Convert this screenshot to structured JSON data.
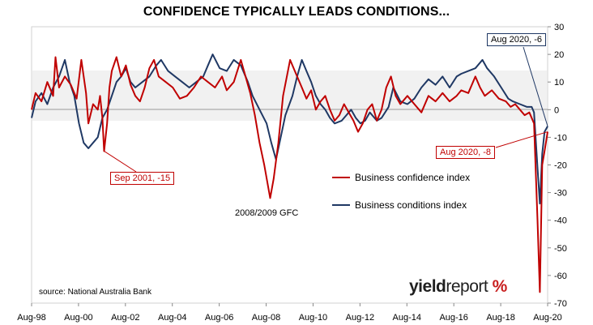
{
  "chart_data": {
    "type": "line",
    "title": "CONFIDENCE TYPICALLY LEADS CONDITIONS...",
    "x_tick_labels": [
      "Aug-98",
      "Aug-00",
      "Aug-02",
      "Aug-04",
      "Aug-06",
      "Aug-08",
      "Aug-10",
      "Aug-12",
      "Aug-14",
      "Aug-16",
      "Aug-18",
      "Aug-20"
    ],
    "xlim": [
      1998.58,
      2020.58
    ],
    "ylim": [
      -70,
      30
    ],
    "y_ticks": [
      30,
      20,
      10,
      0,
      -10,
      -20,
      -30,
      -40,
      -50,
      -60,
      -70
    ],
    "y_axis_side": "right",
    "legend_placement": "center-right",
    "grid": false,
    "series": [
      {
        "name": "Business confidence index",
        "color": "#c00000",
        "points": [
          [
            1998.58,
            0
          ],
          [
            1998.75,
            6
          ],
          [
            1999.0,
            3
          ],
          [
            1999.25,
            10
          ],
          [
            1999.5,
            5
          ],
          [
            1999.6,
            19
          ],
          [
            1999.75,
            8
          ],
          [
            2000.0,
            12
          ],
          [
            2000.25,
            9
          ],
          [
            2000.5,
            4
          ],
          [
            2000.7,
            18
          ],
          [
            2000.9,
            6
          ],
          [
            2001.0,
            -5
          ],
          [
            2001.2,
            2
          ],
          [
            2001.4,
            0
          ],
          [
            2001.5,
            5
          ],
          [
            2001.6,
            -3
          ],
          [
            2001.67,
            -15
          ],
          [
            2001.8,
            -5
          ],
          [
            2001.9,
            8
          ],
          [
            2002.0,
            14
          ],
          [
            2002.2,
            19
          ],
          [
            2002.4,
            12
          ],
          [
            2002.6,
            16
          ],
          [
            2002.8,
            9
          ],
          [
            2003.0,
            5
          ],
          [
            2003.2,
            3
          ],
          [
            2003.4,
            8
          ],
          [
            2003.6,
            15
          ],
          [
            2003.8,
            18
          ],
          [
            2004.0,
            12
          ],
          [
            2004.3,
            10
          ],
          [
            2004.6,
            8
          ],
          [
            2004.9,
            4
          ],
          [
            2005.2,
            5
          ],
          [
            2005.5,
            8
          ],
          [
            2005.8,
            12
          ],
          [
            2006.1,
            10
          ],
          [
            2006.4,
            8
          ],
          [
            2006.7,
            12
          ],
          [
            2006.9,
            7
          ],
          [
            2007.2,
            10
          ],
          [
            2007.5,
            18
          ],
          [
            2007.7,
            12
          ],
          [
            2007.9,
            6
          ],
          [
            2008.1,
            -2
          ],
          [
            2008.3,
            -12
          ],
          [
            2008.5,
            -20
          ],
          [
            2008.75,
            -32
          ],
          [
            2008.9,
            -25
          ],
          [
            2009.1,
            -12
          ],
          [
            2009.3,
            5
          ],
          [
            2009.6,
            18
          ],
          [
            2009.9,
            12
          ],
          [
            2010.1,
            8
          ],
          [
            2010.3,
            4
          ],
          [
            2010.5,
            7
          ],
          [
            2010.7,
            0
          ],
          [
            2010.9,
            3
          ],
          [
            2011.1,
            5
          ],
          [
            2011.3,
            0
          ],
          [
            2011.5,
            -4
          ],
          [
            2011.7,
            -2
          ],
          [
            2011.9,
            2
          ],
          [
            2012.1,
            -1
          ],
          [
            2012.3,
            -4
          ],
          [
            2012.5,
            -8
          ],
          [
            2012.7,
            -5
          ],
          [
            2012.9,
            0
          ],
          [
            2013.1,
            2
          ],
          [
            2013.3,
            -4
          ],
          [
            2013.5,
            0
          ],
          [
            2013.7,
            8
          ],
          [
            2013.9,
            12
          ],
          [
            2014.1,
            5
          ],
          [
            2014.3,
            2
          ],
          [
            2014.6,
            5
          ],
          [
            2014.9,
            2
          ],
          [
            2015.2,
            -1
          ],
          [
            2015.5,
            5
          ],
          [
            2015.8,
            3
          ],
          [
            2016.1,
            6
          ],
          [
            2016.4,
            3
          ],
          [
            2016.7,
            5
          ],
          [
            2016.9,
            7
          ],
          [
            2017.2,
            6
          ],
          [
            2017.5,
            12
          ],
          [
            2017.7,
            8
          ],
          [
            2017.9,
            5
          ],
          [
            2018.2,
            7
          ],
          [
            2018.5,
            4
          ],
          [
            2018.8,
            3
          ],
          [
            2019.0,
            1
          ],
          [
            2019.2,
            2
          ],
          [
            2019.4,
            0
          ],
          [
            2019.6,
            -2
          ],
          [
            2019.8,
            -1
          ],
          [
            2020.0,
            -5
          ],
          [
            2020.15,
            -40
          ],
          [
            2020.25,
            -66
          ],
          [
            2020.35,
            -20
          ],
          [
            2020.45,
            -15
          ],
          [
            2020.58,
            -8
          ]
        ]
      },
      {
        "name": "Business conditions index",
        "color": "#1f3864",
        "points": [
          [
            1998.58,
            -3
          ],
          [
            1998.75,
            3
          ],
          [
            1999.0,
            6
          ],
          [
            1999.25,
            2
          ],
          [
            1999.5,
            8
          ],
          [
            1999.75,
            12
          ],
          [
            2000.0,
            18
          ],
          [
            2000.2,
            10
          ],
          [
            2000.4,
            5
          ],
          [
            2000.6,
            -5
          ],
          [
            2000.8,
            -12
          ],
          [
            2001.0,
            -14
          ],
          [
            2001.2,
            -12
          ],
          [
            2001.4,
            -10
          ],
          [
            2001.6,
            -3
          ],
          [
            2001.8,
            0
          ],
          [
            2002.0,
            5
          ],
          [
            2002.2,
            10
          ],
          [
            2002.4,
            12
          ],
          [
            2002.6,
            15
          ],
          [
            2002.8,
            10
          ],
          [
            2003.0,
            8
          ],
          [
            2003.3,
            10
          ],
          [
            2003.6,
            12
          ],
          [
            2003.9,
            16
          ],
          [
            2004.1,
            18
          ],
          [
            2004.4,
            14
          ],
          [
            2004.7,
            12
          ],
          [
            2005.0,
            10
          ],
          [
            2005.3,
            8
          ],
          [
            2005.6,
            10
          ],
          [
            2005.9,
            12
          ],
          [
            2006.1,
            16
          ],
          [
            2006.3,
            20
          ],
          [
            2006.6,
            15
          ],
          [
            2006.9,
            14
          ],
          [
            2007.2,
            18
          ],
          [
            2007.5,
            16
          ],
          [
            2007.8,
            10
          ],
          [
            2008.0,
            5
          ],
          [
            2008.3,
            0
          ],
          [
            2008.6,
            -5
          ],
          [
            2008.8,
            -12
          ],
          [
            2009.0,
            -18
          ],
          [
            2009.2,
            -10
          ],
          [
            2009.4,
            -2
          ],
          [
            2009.7,
            5
          ],
          [
            2009.9,
            12
          ],
          [
            2010.1,
            18
          ],
          [
            2010.3,
            14
          ],
          [
            2010.5,
            10
          ],
          [
            2010.7,
            5
          ],
          [
            2010.9,
            2
          ],
          [
            2011.1,
            0
          ],
          [
            2011.3,
            -3
          ],
          [
            2011.5,
            -5
          ],
          [
            2011.8,
            -4
          ],
          [
            2012.0,
            -2
          ],
          [
            2012.2,
            0
          ],
          [
            2012.4,
            -3
          ],
          [
            2012.6,
            -5
          ],
          [
            2012.8,
            -4
          ],
          [
            2013.0,
            -1
          ],
          [
            2013.3,
            -4
          ],
          [
            2013.5,
            -3
          ],
          [
            2013.8,
            1
          ],
          [
            2014.0,
            8
          ],
          [
            2014.3,
            3
          ],
          [
            2014.6,
            2
          ],
          [
            2014.9,
            4
          ],
          [
            2015.2,
            8
          ],
          [
            2015.5,
            11
          ],
          [
            2015.8,
            9
          ],
          [
            2016.1,
            12
          ],
          [
            2016.4,
            8
          ],
          [
            2016.7,
            12
          ],
          [
            2016.9,
            13
          ],
          [
            2017.2,
            14
          ],
          [
            2017.5,
            15
          ],
          [
            2017.8,
            18
          ],
          [
            2018.0,
            15
          ],
          [
            2018.3,
            12
          ],
          [
            2018.6,
            8
          ],
          [
            2018.9,
            4
          ],
          [
            2019.1,
            3
          ],
          [
            2019.4,
            2
          ],
          [
            2019.7,
            1
          ],
          [
            2019.9,
            1
          ],
          [
            2020.0,
            -1
          ],
          [
            2020.15,
            -21
          ],
          [
            2020.25,
            -34
          ],
          [
            2020.35,
            -16
          ],
          [
            2020.45,
            -8
          ],
          [
            2020.58,
            -6
          ]
        ]
      }
    ],
    "annotations": [
      {
        "text": "Sep 2001, -15",
        "series": "Business confidence index",
        "x": 2001.67,
        "y": -15
      },
      {
        "text": "2008/2009 GFC",
        "x": 2008.75,
        "y": -32
      },
      {
        "text": "Aug 2020, -6",
        "series": "Business conditions index",
        "x": 2020.58,
        "y": -6
      },
      {
        "text": "Aug 2020, -8",
        "series": "Business confidence index",
        "x": 2020.58,
        "y": -8
      }
    ]
  },
  "source_text": "source: National Australia Bank",
  "logo": {
    "part1": "yield",
    "part2": "report",
    "symbol": "%"
  }
}
